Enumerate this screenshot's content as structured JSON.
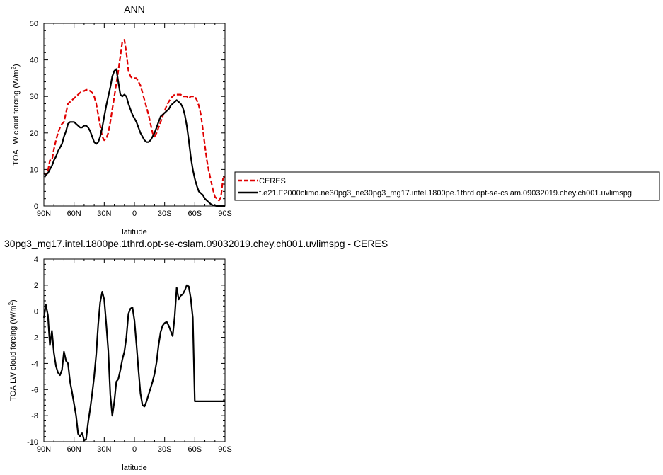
{
  "chart_data": [
    {
      "type": "line",
      "title": "ANN",
      "xlabel": "latitude",
      "ylabel": "TOA LW cloud forcing (W/m",
      "ylabel_sup": "2",
      "ylabel_close": ")",
      "xlim": [
        90,
        -90
      ],
      "ylim": [
        0,
        50
      ],
      "x_ticks": [
        {
          "v": 90,
          "label": "90N"
        },
        {
          "v": 60,
          "label": "60N"
        },
        {
          "v": 30,
          "label": "30N"
        },
        {
          "v": 0,
          "label": "0"
        },
        {
          "v": -30,
          "label": "30S"
        },
        {
          "v": -60,
          "label": "60S"
        },
        {
          "v": -90,
          "label": "90S"
        }
      ],
      "y_ticks": [
        0,
        10,
        20,
        30,
        40,
        50
      ],
      "legend_position": "right",
      "series": [
        {
          "name": "CERES",
          "color": "#e00000",
          "dash": "dashed",
          "x": [
            90,
            88,
            86,
            84,
            82,
            80,
            78,
            76,
            74,
            72,
            70,
            68,
            66,
            64,
            62,
            60,
            58,
            56,
            54,
            52,
            50,
            48,
            46,
            44,
            42,
            40,
            38,
            36,
            34,
            32,
            30,
            28,
            26,
            24,
            22,
            20,
            18,
            16,
            14,
            12,
            10,
            8,
            6,
            4,
            2,
            0,
            -2,
            -4,
            -6,
            -8,
            -10,
            -12,
            -14,
            -16,
            -18,
            -20,
            -22,
            -24,
            -26,
            -28,
            -30,
            -32,
            -34,
            -36,
            -38,
            -40,
            -42,
            -44,
            -46,
            -48,
            -50,
            -52,
            -54,
            -56,
            -58,
            -60,
            -62,
            -64,
            -66,
            -68,
            -70,
            -72,
            -74,
            -76,
            -78,
            -80,
            -82,
            -84,
            -86,
            -88,
            -90
          ],
          "y": [
            9.0,
            8.5,
            9.5,
            12.5,
            12.5,
            15.5,
            18.0,
            20.0,
            21.5,
            22.5,
            23.0,
            25.5,
            28.0,
            28.5,
            29.0,
            29.5,
            30.0,
            30.5,
            31.0,
            31.5,
            31.5,
            31.8,
            31.8,
            31.5,
            31.0,
            30.0,
            28.0,
            25.0,
            22.0,
            19.0,
            18.0,
            18.5,
            20.0,
            23.0,
            26.5,
            30.0,
            33.5,
            37.0,
            41.0,
            45.0,
            45.5,
            42.0,
            37.0,
            35.5,
            35.0,
            35.0,
            35.0,
            34.0,
            33.0,
            31.0,
            29.0,
            27.0,
            25.0,
            22.5,
            20.0,
            19.0,
            20.0,
            21.5,
            23.0,
            24.5,
            26.0,
            27.5,
            28.5,
            29.5,
            30.0,
            30.5,
            30.5,
            30.5,
            30.5,
            30.0,
            30.0,
            30.0,
            29.5,
            30.0,
            30.0,
            30.0,
            29.0,
            27.5,
            25.0,
            21.0,
            16.5,
            12.5,
            9.5,
            7.0,
            4.5,
            2.5,
            2.0,
            1.5,
            2.5,
            7.5,
            8.0
          ]
        },
        {
          "name": "f.e21.F2000climo.ne30pg3_ne30pg3_mg17.intel.1800pe.1thrd.opt-se-cslam.09032019.chey.ch001.uvlimspg",
          "color": "#000000",
          "dash": "solid",
          "x": [
            90,
            88,
            86,
            84,
            82,
            80,
            78,
            76,
            74,
            72,
            70,
            68,
            66,
            64,
            62,
            60,
            58,
            56,
            54,
            52,
            50,
            48,
            46,
            44,
            42,
            40,
            38,
            36,
            34,
            32,
            30,
            28,
            26,
            24,
            22,
            20,
            18,
            16,
            14,
            12,
            10,
            8,
            6,
            4,
            2,
            0,
            -2,
            -4,
            -6,
            -8,
            -10,
            -12,
            -14,
            -16,
            -18,
            -20,
            -22,
            -24,
            -26,
            -28,
            -30,
            -32,
            -34,
            -36,
            -38,
            -40,
            -42,
            -44,
            -46,
            -48,
            -50,
            -52,
            -54,
            -56,
            -58,
            -60,
            -62,
            -64,
            -66,
            -68,
            -70,
            -72,
            -74,
            -76,
            -78,
            -80,
            -82,
            -84,
            -86,
            -88,
            -90
          ],
          "y": [
            9.0,
            8.5,
            9.0,
            10.0,
            11.0,
            12.5,
            13.5,
            15.0,
            16.0,
            17.0,
            19.0,
            20.5,
            22.5,
            23.0,
            23.0,
            23.0,
            22.5,
            22.0,
            21.5,
            21.5,
            22.0,
            22.0,
            21.5,
            20.5,
            19.0,
            17.5,
            17.0,
            17.5,
            19.0,
            21.5,
            24.5,
            27.5,
            30.0,
            32.5,
            35.5,
            37.0,
            37.5,
            34.0,
            30.5,
            30.0,
            30.5,
            30.0,
            28.0,
            26.5,
            25.0,
            24.0,
            23.0,
            21.5,
            20.0,
            19.0,
            18.0,
            17.5,
            17.5,
            18.0,
            19.0,
            20.0,
            21.5,
            23.0,
            24.5,
            25.0,
            25.5,
            26.0,
            26.5,
            27.5,
            28.0,
            28.5,
            29.0,
            28.5,
            28.0,
            27.0,
            25.0,
            22.0,
            18.0,
            13.5,
            10.0,
            7.5,
            5.5,
            4.0,
            3.5,
            3.0,
            2.0,
            1.5,
            1.0,
            0.5,
            0.2,
            0.1,
            0.0,
            0.0,
            0.0,
            0.0,
            0.0
          ]
        }
      ]
    },
    {
      "type": "line",
      "title": "30pg3_mg17.intel.1800pe.1thrd.opt-se-cslam.09032019.chey.ch001.uvlimspg - CERES",
      "xlabel": "latitude",
      "ylabel": "TOA LW cloud forcing (W/m",
      "ylabel_sup": "2",
      "ylabel_close": ")",
      "xlim": [
        90,
        -90
      ],
      "ylim": [
        -10,
        4
      ],
      "x_ticks": [
        {
          "v": 90,
          "label": "90N"
        },
        {
          "v": 60,
          "label": "60N"
        },
        {
          "v": 30,
          "label": "30N"
        },
        {
          "v": 0,
          "label": "0"
        },
        {
          "v": -30,
          "label": "30S"
        },
        {
          "v": -60,
          "label": "60S"
        },
        {
          "v": -90,
          "label": "90S"
        }
      ],
      "y_ticks": [
        -10,
        -8,
        -6,
        -4,
        -2,
        0,
        2,
        4
      ],
      "series": [
        {
          "name": "",
          "color": "#000000",
          "dash": "solid",
          "x": [
            90,
            88,
            86,
            84,
            82,
            80,
            78,
            76,
            74,
            72,
            70,
            68,
            66,
            64,
            62,
            60,
            58,
            56,
            54,
            52,
            50,
            48,
            46,
            44,
            42,
            40,
            38,
            36,
            34,
            32,
            30,
            28,
            26,
            24,
            22,
            20,
            18,
            16,
            14,
            12,
            10,
            8,
            6,
            4,
            2,
            0,
            -2,
            -4,
            -6,
            -8,
            -10,
            -12,
            -14,
            -16,
            -18,
            -20,
            -22,
            -24,
            -26,
            -28,
            -30,
            -32,
            -34,
            -36,
            -38,
            -40,
            -42,
            -44,
            -46,
            -48,
            -50,
            -52,
            -54,
            -56,
            -58,
            -60,
            -62,
            -64,
            -66,
            -68,
            -70,
            -72,
            -74,
            -76,
            -78,
            -80,
            -82,
            -84,
            -86,
            -88,
            -90
          ],
          "y": [
            -0.5,
            0.5,
            -0.3,
            -2.6,
            -1.5,
            -3.2,
            -4.2,
            -4.7,
            -4.9,
            -4.5,
            -3.1,
            -3.8,
            -4.0,
            -5.4,
            -6.2,
            -7.1,
            -8.0,
            -9.4,
            -9.6,
            -9.3,
            -9.9,
            -9.8,
            -8.5,
            -7.5,
            -6.3,
            -5.0,
            -3.3,
            -1.0,
            0.7,
            1.5,
            0.9,
            -1.0,
            -3.0,
            -6.4,
            -8.0,
            -6.9,
            -5.4,
            -5.2,
            -4.5,
            -3.7,
            -3.1,
            -2.0,
            -0.2,
            0.2,
            0.3,
            -0.7,
            -2.5,
            -4.5,
            -6.3,
            -7.2,
            -7.3,
            -6.9,
            -6.4,
            -5.9,
            -5.4,
            -4.8,
            -3.9,
            -2.6,
            -1.6,
            -1.1,
            -0.9,
            -0.8,
            -1.1,
            -1.5,
            -1.9,
            -0.4,
            1.8,
            0.9,
            1.2,
            1.3,
            1.6,
            2.0,
            1.9,
            1.0,
            -0.5,
            -6.9,
            -6.9,
            -6.9,
            -6.9,
            -6.9,
            -6.9,
            -6.9,
            -6.9,
            -6.9,
            -6.9,
            -6.9,
            -6.9,
            -6.9,
            -6.9,
            -6.9,
            -6.9
          ]
        }
      ]
    }
  ]
}
